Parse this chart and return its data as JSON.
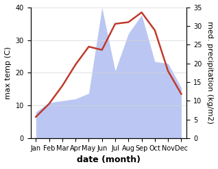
{
  "months": [
    "Jan",
    "Feb",
    "Mar",
    "Apr",
    "May",
    "Jun",
    "Jul",
    "Aug",
    "Sep",
    "Oct",
    "Nov",
    "Dec"
  ],
  "temp": [
    6.5,
    10.5,
    16.0,
    22.5,
    28.0,
    27.0,
    35.0,
    35.5,
    38.5,
    33.0,
    20.5,
    13.5
  ],
  "precip": [
    7.0,
    9.5,
    10.0,
    10.5,
    12.0,
    35.0,
    18.0,
    28.0,
    33.0,
    20.5,
    20.0,
    13.5
  ],
  "temp_color": "#c0392b",
  "precip_color": "#b0bef0",
  "background_color": "#ffffff",
  "ylabel_left": "max temp (C)",
  "ylabel_right": "med. precipitation (kg/m2)",
  "xlabel": "date (month)",
  "ylim_left": [
    0,
    40
  ],
  "ylim_right": [
    0,
    35
  ],
  "label_fontsize": 8,
  "tick_fontsize": 7
}
